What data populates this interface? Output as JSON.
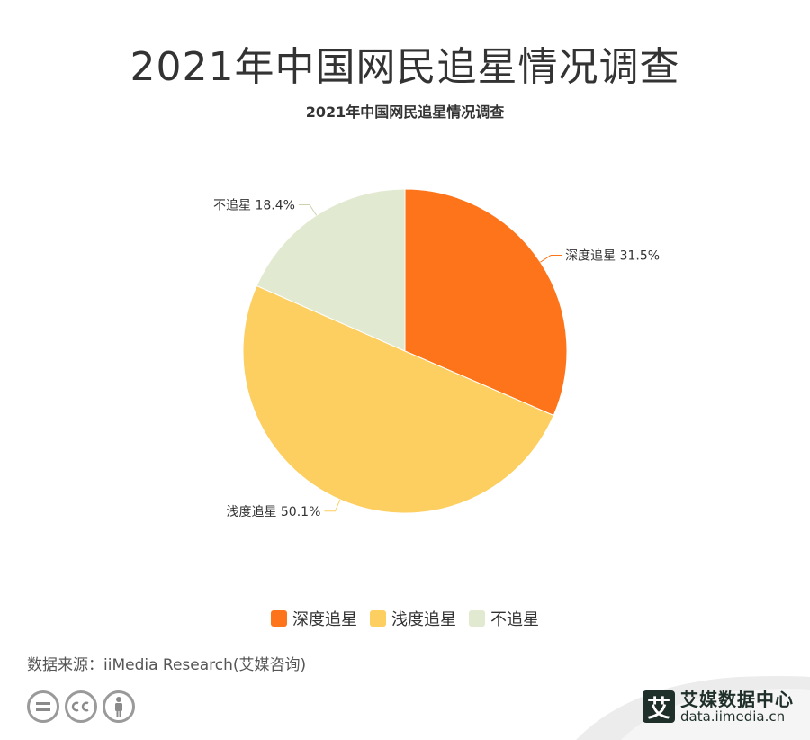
{
  "page": {
    "title": "2021年中国网民追星情况调查",
    "source": "数据来源：iiMedia Research(艾媒咨询)",
    "brand": {
      "name": "艾媒数据中心",
      "url": "data.iimedia.cn",
      "mark": "艾"
    },
    "license_icons": [
      "equals-icon",
      "cc-icon",
      "person-icon"
    ]
  },
  "chart_data": {
    "type": "pie",
    "title": "2021年中国网民追星情况调查",
    "unit": "%",
    "legend_position": "bottom",
    "slices": [
      {
        "name": "深度追星",
        "value": 31.5,
        "label": "深度追星 31.5%",
        "color": "#fd741b"
      },
      {
        "name": "浅度追星",
        "value": 50.1,
        "label": "浅度追星 50.1%",
        "color": "#fdce60"
      },
      {
        "name": "不追星",
        "value": 18.4,
        "label": "不追星 18.4%",
        "color": "#e2e9d1"
      }
    ]
  }
}
